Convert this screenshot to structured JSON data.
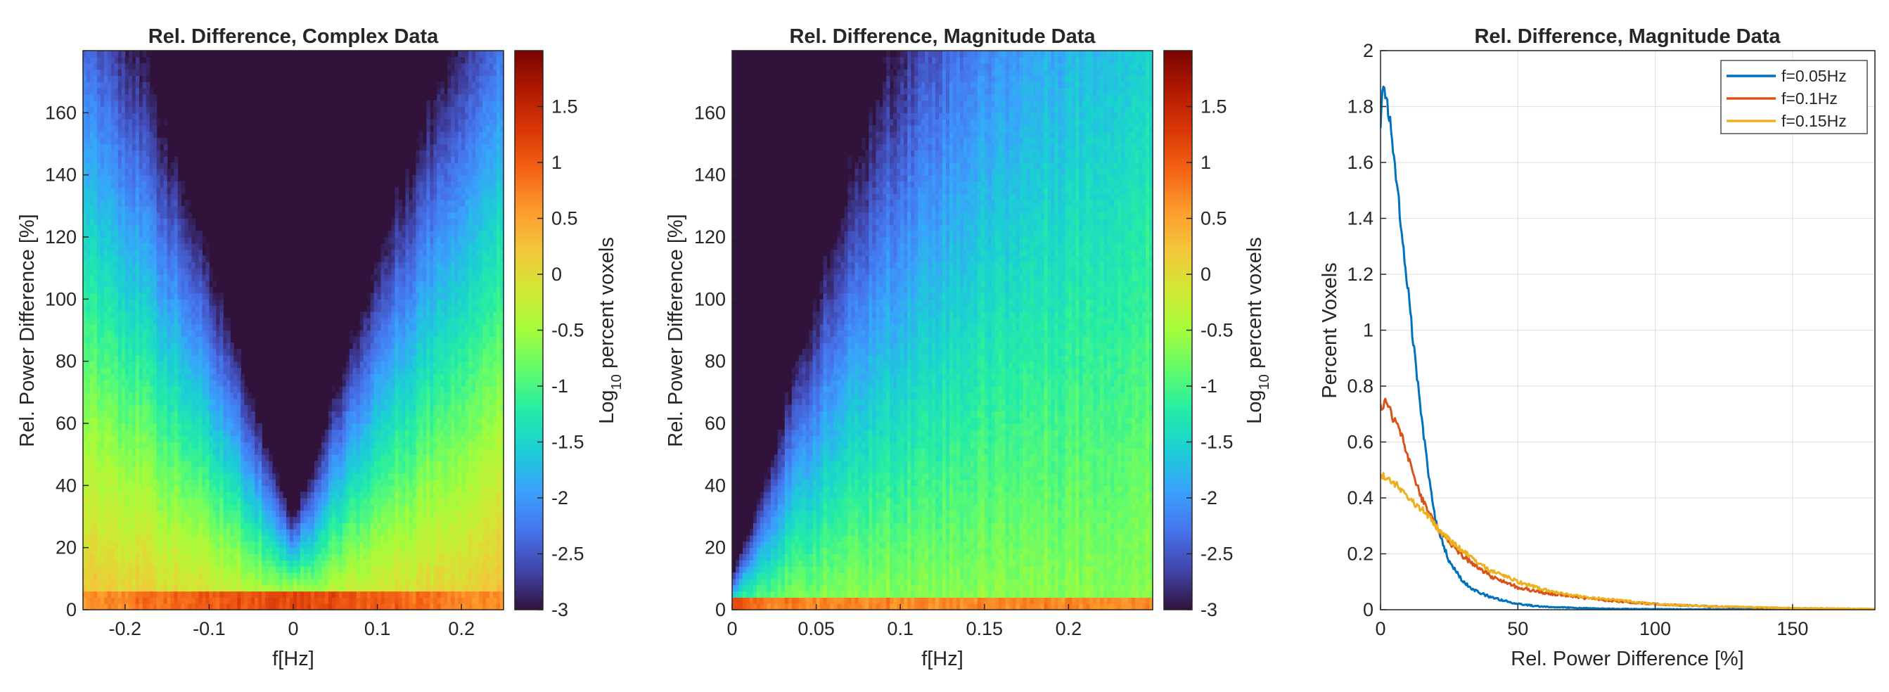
{
  "figure": {
    "colormap": [
      "#30123b",
      "#4145ab",
      "#4675ed",
      "#39a2fc",
      "#1bcfd4",
      "#24eca6",
      "#61fc6c",
      "#a4fc3b",
      "#d1e834",
      "#f3c63a",
      "#fe9b2d",
      "#f36315",
      "#d93806",
      "#b11901",
      "#7a0402"
    ]
  },
  "chart_data": [
    {
      "type": "heatmap",
      "title": "Rel. Difference, Complex Data",
      "xlabel": "f[Hz]",
      "ylabel": "Rel. Power Difference [%]",
      "xlim": [
        -0.25,
        0.25
      ],
      "ylim": [
        0,
        180
      ],
      "xticks": [
        -0.2,
        -0.1,
        0,
        0.1,
        0.2
      ],
      "xtick_labels": [
        "-0.2",
        "-0.1",
        "0",
        "0.1",
        "0.2"
      ],
      "yticks": [
        0,
        20,
        40,
        60,
        80,
        100,
        120,
        140,
        160
      ],
      "yticks_labels": [
        "0",
        "20",
        "40",
        "60",
        "80",
        "100",
        "120",
        "140",
        "160"
      ],
      "colorbar": {
        "label_base": "Log",
        "label_sub": "10",
        "label_rest": " percent voxels",
        "clim": [
          -3,
          2
        ],
        "ticks": [
          -3,
          -2.5,
          -2,
          -1.5,
          -1,
          -0.5,
          0,
          0.5,
          1,
          1.5
        ],
        "tick_labels": [
          "-3",
          "-2.5",
          "-2",
          "-1.5",
          "-1",
          "-0.5",
          "0",
          "0.5",
          "1",
          "1.5"
        ]
      }
    },
    {
      "type": "heatmap",
      "title": "Rel. Difference, Magnitude Data",
      "xlabel": "f[Hz]",
      "ylabel": "Rel. Power Difference [%]",
      "xlim": [
        0,
        0.25
      ],
      "ylim": [
        0,
        180
      ],
      "xticks": [
        0,
        0.05,
        0.1,
        0.15,
        0.2
      ],
      "xtick_labels": [
        "0",
        "0.05",
        "0.1",
        "0.15",
        "0.2"
      ],
      "yticks": [
        0,
        20,
        40,
        60,
        80,
        100,
        120,
        140,
        160
      ],
      "yticks_labels": [
        "0",
        "20",
        "40",
        "60",
        "80",
        "100",
        "120",
        "140",
        "160"
      ],
      "colorbar": {
        "label_base": "Log",
        "label_sub": "10",
        "label_rest": " percent voxels",
        "clim": [
          -3,
          2
        ],
        "ticks": [
          -3,
          -2.5,
          -2,
          -1.5,
          -1,
          -0.5,
          0,
          0.5,
          1,
          1.5
        ],
        "tick_labels": [
          "-3",
          "-2.5",
          "-2",
          "-1.5",
          "-1",
          "-0.5",
          "0",
          "0.5",
          "1",
          "1.5"
        ]
      }
    },
    {
      "type": "line",
      "title": "Rel. Difference, Magnitude Data",
      "xlabel": "Rel. Power Difference [%]",
      "ylabel": "Percent Voxels",
      "xlim": [
        0,
        180
      ],
      "ylim": [
        0,
        2
      ],
      "grid": true,
      "legend_position": "top-right",
      "xticks": [
        0,
        50,
        100,
        150
      ],
      "xtick_labels": [
        "0",
        "50",
        "100",
        "150"
      ],
      "yticks": [
        0,
        0.2,
        0.4,
        0.6,
        0.8,
        1,
        1.2,
        1.4,
        1.6,
        1.8,
        2
      ],
      "ytick_labels": [
        "0",
        "0.2",
        "0.4",
        "0.6",
        "0.8",
        "1",
        "1.2",
        "1.4",
        "1.6",
        "1.8",
        "2"
      ],
      "series": [
        {
          "name": "f=0.05Hz",
          "color": "#0072bd",
          "x": [
            0,
            1,
            2,
            3,
            5,
            7,
            10,
            12,
            15,
            18,
            20,
            25,
            30,
            35,
            40,
            50,
            60,
            80,
            100,
            150,
            180
          ],
          "y": [
            1.75,
            1.9,
            1.82,
            1.78,
            1.62,
            1.42,
            1.15,
            0.95,
            0.68,
            0.45,
            0.32,
            0.17,
            0.1,
            0.065,
            0.045,
            0.02,
            0.01,
            0.004,
            0.002,
            0.001,
            0
          ]
        },
        {
          "name": "f=0.1Hz",
          "color": "#d95319",
          "x": [
            0,
            2,
            4,
            6,
            8,
            10,
            12,
            15,
            20,
            25,
            30,
            40,
            50,
            60,
            80,
            100,
            120,
            150,
            180
          ],
          "y": [
            0.72,
            0.75,
            0.7,
            0.66,
            0.62,
            0.55,
            0.47,
            0.4,
            0.3,
            0.24,
            0.19,
            0.12,
            0.08,
            0.06,
            0.035,
            0.02,
            0.012,
            0.005,
            0.002
          ]
        },
        {
          "name": "f=0.15Hz",
          "color": "#edb120",
          "x": [
            0,
            2,
            5,
            8,
            10,
            15,
            20,
            25,
            30,
            35,
            40,
            50,
            60,
            70,
            80,
            100,
            120,
            150,
            180
          ],
          "y": [
            0.47,
            0.48,
            0.45,
            0.43,
            0.4,
            0.36,
            0.3,
            0.25,
            0.21,
            0.17,
            0.14,
            0.1,
            0.07,
            0.05,
            0.04,
            0.02,
            0.012,
            0.006,
            0.003
          ]
        }
      ]
    }
  ]
}
